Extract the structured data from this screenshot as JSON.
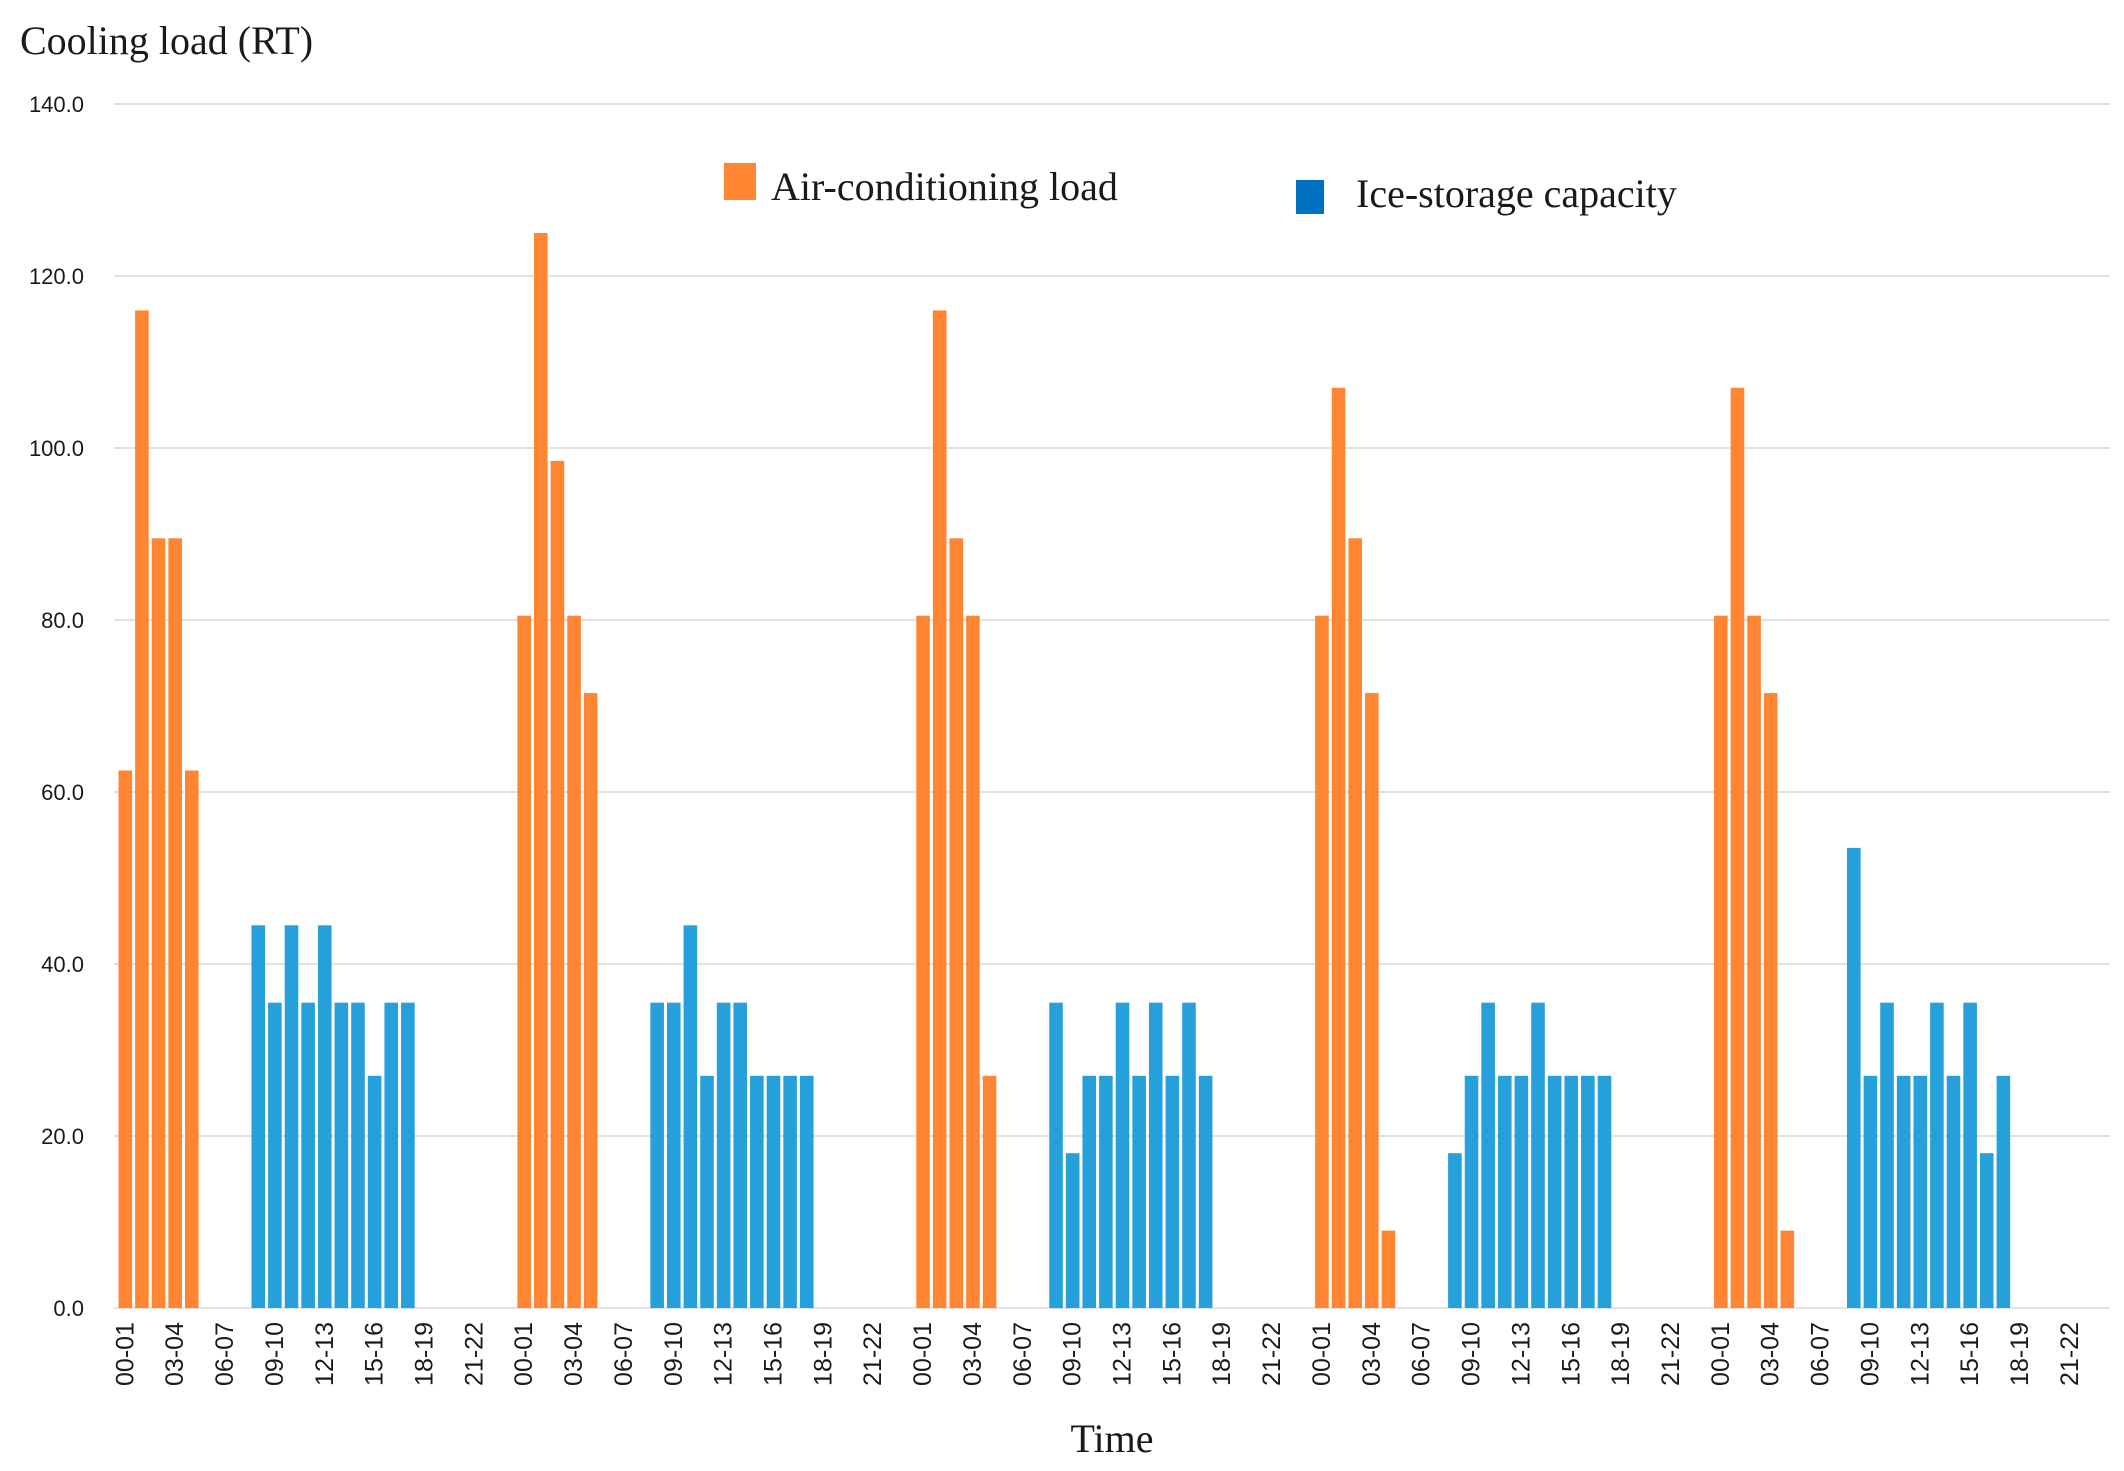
{
  "chart_data": {
    "type": "bar",
    "title": "",
    "ylabel": "Cooling load (RT)",
    "xlabel": "Time",
    "ylim": [
      0,
      140
    ],
    "yticks": [
      "0.0",
      "20.0",
      "40.0",
      "60.0",
      "80.0",
      "100.0",
      "120.0",
      "140.0"
    ],
    "grid": true,
    "legend_position": "top-center",
    "day_labels": [
      "00-01",
      "03-04",
      "06-07",
      "09-10",
      "12-13",
      "15-16",
      "18-19",
      "21-22"
    ],
    "colors": {
      "air": "#FF8533",
      "ice": "#25A0DA",
      "ice_legend": "#0070C0"
    },
    "series": [
      {
        "name": "Air-conditioning load",
        "values": [
          62.5,
          116,
          89.5,
          89.5,
          62.5,
          0,
          0,
          0,
          0,
          0,
          0,
          0,
          0,
          0,
          0,
          0,
          0,
          0,
          0,
          0,
          0,
          0,
          0,
          0,
          80.5,
          125,
          98.5,
          80.5,
          71.5,
          0,
          0,
          0,
          0,
          0,
          0,
          0,
          0,
          0,
          0,
          0,
          0,
          0,
          0,
          0,
          0,
          0,
          0,
          0,
          80.5,
          116,
          89.5,
          80.5,
          27,
          0,
          0,
          0,
          0,
          0,
          0,
          0,
          0,
          0,
          0,
          0,
          0,
          0,
          0,
          0,
          0,
          0,
          0,
          0,
          80.5,
          107,
          89.5,
          71.5,
          9,
          0,
          0,
          0,
          0,
          0,
          0,
          0,
          0,
          0,
          0,
          0,
          0,
          0,
          0,
          0,
          0,
          0,
          0,
          0,
          80.5,
          107,
          80.5,
          71.5,
          9,
          0,
          0,
          0,
          0,
          0,
          0,
          0,
          0,
          0,
          0,
          0,
          0,
          0,
          0,
          0,
          0,
          0,
          0,
          0
        ]
      },
      {
        "name": "Ice-storage capacity",
        "values": [
          0,
          0,
          0,
          0,
          0,
          0,
          0,
          0,
          44.5,
          35.5,
          44.5,
          35.5,
          44.5,
          35.5,
          35.5,
          27,
          35.5,
          35.5,
          0,
          0,
          0,
          0,
          0,
          0,
          0,
          0,
          0,
          0,
          0,
          0,
          0,
          0,
          35.5,
          35.5,
          44.5,
          27,
          35.5,
          35.5,
          27,
          27,
          27,
          27,
          0,
          0,
          0,
          0,
          0,
          0,
          0,
          0,
          0,
          0,
          0,
          0,
          0,
          0,
          35.5,
          18,
          27,
          27,
          35.5,
          27,
          35.5,
          27,
          35.5,
          27,
          0,
          0,
          0,
          0,
          0,
          0,
          0,
          0,
          0,
          0,
          0,
          0,
          0,
          0,
          18,
          27,
          35.5,
          27,
          27,
          35.5,
          27,
          27,
          27,
          27,
          0,
          0,
          0,
          0,
          0,
          0,
          0,
          0,
          0,
          0,
          0,
          0,
          0,
          0,
          53.5,
          27,
          35.5,
          27,
          27,
          35.5,
          27,
          35.5,
          18,
          27,
          0,
          0,
          0,
          0,
          0,
          0
        ]
      }
    ]
  }
}
